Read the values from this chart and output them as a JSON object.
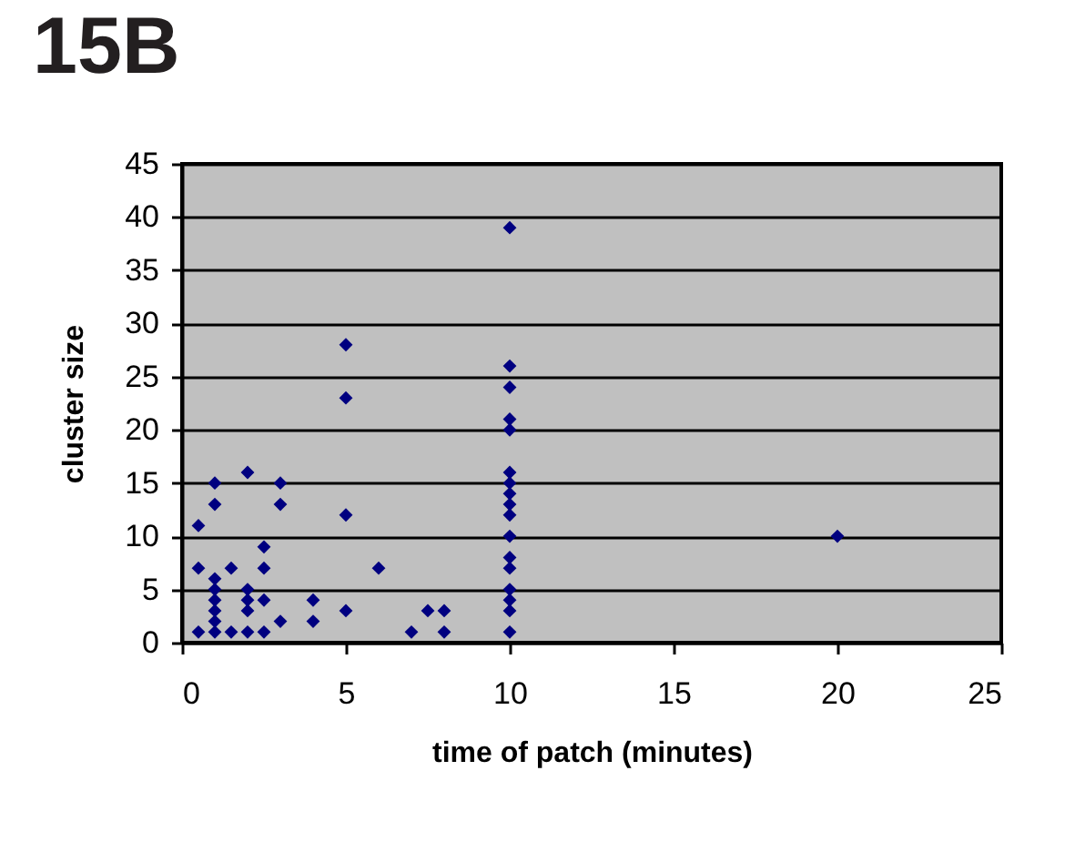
{
  "chart_data": {
    "type": "scatter",
    "title": "15B",
    "xlabel": "time of patch (minutes)",
    "ylabel": "cluster size",
    "x": [
      0.5,
      0.5,
      0.5,
      1,
      1,
      1,
      1,
      1,
      1,
      1,
      1,
      1.5,
      1.5,
      2,
      2,
      2,
      2,
      2,
      2.5,
      2.5,
      2.5,
      2.5,
      3,
      3,
      3,
      4,
      4,
      5,
      5,
      5,
      5,
      6,
      7,
      7.5,
      8,
      8,
      10,
      10,
      10,
      10,
      10,
      10,
      10,
      10,
      10,
      10,
      10,
      10,
      10,
      10,
      10,
      10,
      10,
      20
    ],
    "values": [
      11,
      7,
      1,
      15,
      13,
      6,
      5,
      4,
      3,
      2,
      1,
      7,
      1,
      16,
      5,
      4,
      3,
      1,
      9,
      7,
      4,
      1,
      15,
      13,
      2,
      4,
      2,
      28,
      23,
      12,
      3,
      7,
      1,
      3,
      3,
      1,
      39,
      26,
      24,
      21,
      20,
      16,
      15,
      14,
      13,
      12,
      10,
      8,
      7,
      5,
      4,
      3,
      1,
      10
    ],
    "color": "#000080",
    "marker": "diamond",
    "xlim": [
      0,
      25
    ],
    "ylim": [
      0,
      45
    ],
    "xticks": [
      0,
      5,
      10,
      15,
      20,
      25
    ],
    "yticks": [
      0,
      5,
      10,
      15,
      20,
      25,
      30,
      35,
      40,
      45
    ],
    "grid": "y"
  }
}
